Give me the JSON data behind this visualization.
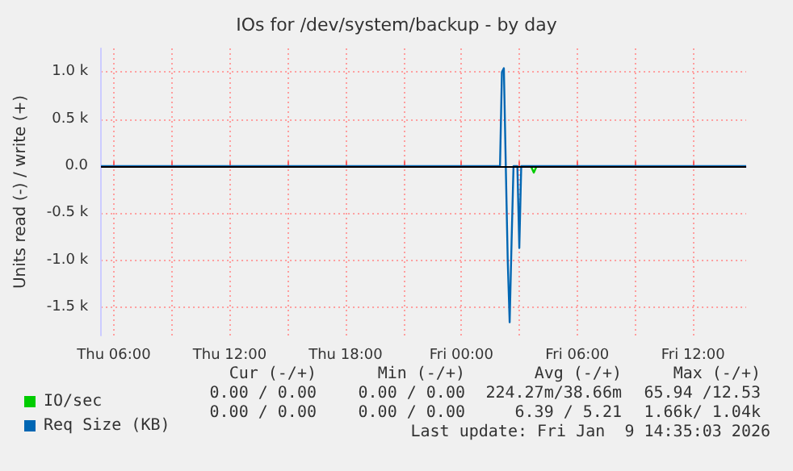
{
  "chart_data": {
    "type": "line",
    "title": "IOs for /dev/system/backup - by day",
    "ylabel": "Units read (-) / write (+)",
    "xlim": [
      "2026-01-08T05:20",
      "2026-01-09T14:45"
    ],
    "xticks": [
      {
        "value": "2026-01-08T06:00",
        "label": "Thu 06:00"
      },
      {
        "value": "2026-01-08T09:00",
        "label": null
      },
      {
        "value": "2026-01-08T12:00",
        "label": "Thu 12:00"
      },
      {
        "value": "2026-01-08T15:00",
        "label": null
      },
      {
        "value": "2026-01-08T18:00",
        "label": "Thu 18:00"
      },
      {
        "value": "2026-01-08T21:00",
        "label": null
      },
      {
        "value": "2026-01-09T00:00",
        "label": "Fri 00:00"
      },
      {
        "value": "2026-01-09T03:00",
        "label": null
      },
      {
        "value": "2026-01-09T06:00",
        "label": "Fri 06:00"
      },
      {
        "value": "2026-01-09T09:00",
        "label": null
      },
      {
        "value": "2026-01-09T12:00",
        "label": "Fri 12:00"
      }
    ],
    "ylim": [
      -1800,
      1250
    ],
    "yticks": [
      {
        "value": -1500,
        "label": "-1.5 k"
      },
      {
        "value": -1000,
        "label": "-1.0 k"
      },
      {
        "value": -500,
        "label": "-0.5 k"
      },
      {
        "value": 0,
        "label": "0.0"
      },
      {
        "value": 500,
        "label": "0.5 k"
      },
      {
        "value": 1000,
        "label": "1.0 k"
      }
    ],
    "grid": true,
    "legend": "bottom left",
    "line_style": "solid",
    "marker": "none",
    "ref_lines": [
      {
        "axis": "y",
        "value": 0,
        "color": "#000000"
      }
    ],
    "series": [
      {
        "name": "IO/sec",
        "color": "#00cc00",
        "x": [
          "2026-01-09T03:36",
          "2026-01-09T03:45",
          "2026-01-09T03:54"
        ],
        "values": [
          0,
          -70,
          0
        ]
      },
      {
        "name": "Req Size (KB)",
        "color": "#0066b3",
        "x": [
          "2026-01-08T05:20",
          "2026-01-09T02:00",
          "2026-01-09T02:06",
          "2026-01-09T02:12",
          "2026-01-09T02:18",
          "2026-01-09T02:24",
          "2026-01-09T02:30",
          "2026-01-09T02:36",
          "2026-01-09T02:42",
          "2026-01-09T02:54",
          "2026-01-09T03:00",
          "2026-01-09T03:06",
          "2026-01-09T14:45"
        ],
        "values": [
          0,
          0,
          1000,
          1040,
          0,
          -1000,
          -1660,
          -800,
          0,
          0,
          -870,
          0,
          0
        ]
      }
    ],
    "annotations": [
      "Cur (-/+)",
      "Min (-/+)",
      "Avg (-/+)",
      "Max (-/+)",
      "0.00 / 0.00",
      "0.00 / 0.00",
      "224.27m/38.66m",
      "65.94 /12.53",
      "0.00 / 0.00",
      "0.00 / 0.00",
      "6.39 / 5.21",
      "1.66k/ 1.04k",
      "Last update: Fri Jan  9 14:35:03 2026"
    ]
  }
}
